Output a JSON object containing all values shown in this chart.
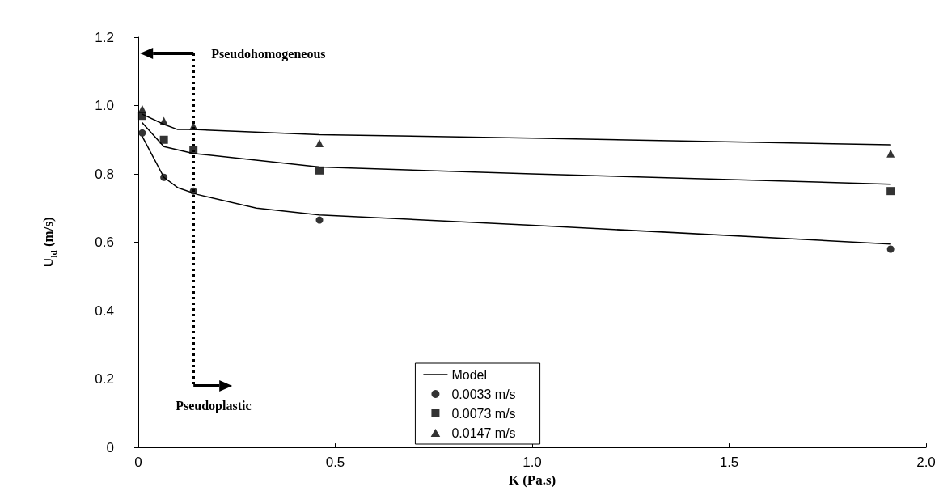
{
  "chart_data": {
    "type": "scatter",
    "xlabel": "K (Pa.s)",
    "ylabel": "U$_{ld}$ (m/s)",
    "xlim": [
      0,
      2
    ],
    "xticks": [
      0,
      0.5,
      {
        "value": 1,
        "label": "1.0"
      },
      1.5,
      {
        "value": 2,
        "label": "2.0"
      }
    ],
    "ylim": [
      0,
      1.2
    ],
    "yticks": [
      0,
      0.2,
      0.4,
      0.6,
      0.8,
      {
        "value": 1,
        "label": "1.0"
      },
      1.2
    ],
    "grid": false,
    "legend": "bottom",
    "series": [
      {
        "name": "Model",
        "type": "line",
        "color": "#000000",
        "marker": "none",
        "line_style": "solid",
        "x": [
          0.01,
          0.065,
          0.1,
          0.15,
          0.3,
          0.46,
          1.0,
          1.91
        ],
        "values": [
          0.91,
          0.79,
          0.76,
          0.74,
          0.7,
          0.68,
          0.65,
          0.595
        ]
      },
      {
        "type": "line",
        "color": "#000000",
        "marker": "none",
        "line_style": "solid",
        "x": [
          0.01,
          0.065,
          0.14,
          0.46,
          1.0,
          1.91
        ],
        "values": [
          0.95,
          0.88,
          0.86,
          0.82,
          0.8,
          0.77
        ]
      },
      {
        "type": "line",
        "color": "#000000",
        "marker": "none",
        "line_style": "solid",
        "x": [
          0.01,
          0.065,
          0.1,
          0.14,
          0.46,
          1.0,
          1.91
        ],
        "values": [
          0.975,
          0.945,
          0.93,
          0.93,
          0.915,
          0.905,
          0.885
        ]
      },
      {
        "name": "0.0033 m/s",
        "color": "#000000",
        "marker": "circle",
        "x": [
          0.01,
          0.065,
          0.14,
          0.46,
          1.91
        ],
        "values": [
          0.92,
          0.79,
          0.75,
          0.665,
          0.58
        ]
      },
      {
        "name": "0.0073 m/s",
        "color": "#000000",
        "marker": "square",
        "x": [
          0.01,
          0.065,
          0.14,
          0.46,
          1.91
        ],
        "values": [
          0.97,
          0.9,
          0.87,
          0.81,
          0.75
        ]
      },
      {
        "name": "0.0147 m/s",
        "color": "#000000",
        "marker": "triangle",
        "x": [
          0.01,
          0.065,
          0.14,
          0.46,
          1.91
        ],
        "values": [
          0.99,
          0.955,
          0.94,
          0.89,
          0.86
        ]
      }
    ],
    "ref_lines": [
      {
        "axis": "x",
        "value": 0.14,
        "color": "#000000",
        "line_style": "dotted"
      }
    ],
    "annotations": [
      "Pseudohomogeneous",
      "Pseudoplastic"
    ]
  }
}
